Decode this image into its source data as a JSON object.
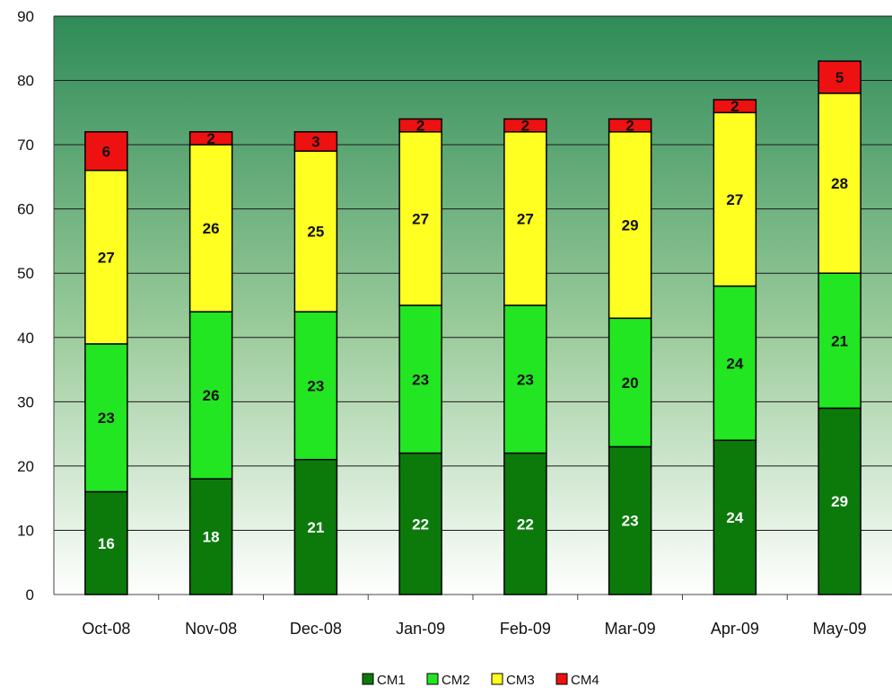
{
  "chart_data": {
    "type": "bar",
    "stacked": true,
    "categories": [
      "Oct-08",
      "Nov-08",
      "Dec-08",
      "Jan-09",
      "Feb-09",
      "Mar-09",
      "Apr-09",
      "May-09"
    ],
    "series": [
      {
        "name": "CM1",
        "color": "#0b7a0b",
        "label_color": "#ffffff",
        "values": [
          16,
          18,
          21,
          22,
          22,
          23,
          24,
          29
        ]
      },
      {
        "name": "CM2",
        "color": "#22e622",
        "label_color": "#111111",
        "values": [
          23,
          26,
          23,
          23,
          23,
          20,
          24,
          21
        ]
      },
      {
        "name": "CM3",
        "color": "#ffff22",
        "label_color": "#111111",
        "values": [
          27,
          26,
          25,
          27,
          27,
          29,
          27,
          28
        ]
      },
      {
        "name": "CM4",
        "color": "#ee1111",
        "label_color": "#111111",
        "values": [
          6,
          2,
          3,
          2,
          2,
          2,
          2,
          5
        ]
      }
    ],
    "ylim": [
      0,
      90
    ],
    "yticks": [
      0,
      10,
      20,
      30,
      40,
      50,
      60,
      70,
      80,
      90
    ],
    "grid": true,
    "legend_position": "bottom",
    "title": "",
    "xlabel": "",
    "ylabel": "",
    "background_gradient": [
      "#2e8b57",
      "#ffffff"
    ]
  }
}
